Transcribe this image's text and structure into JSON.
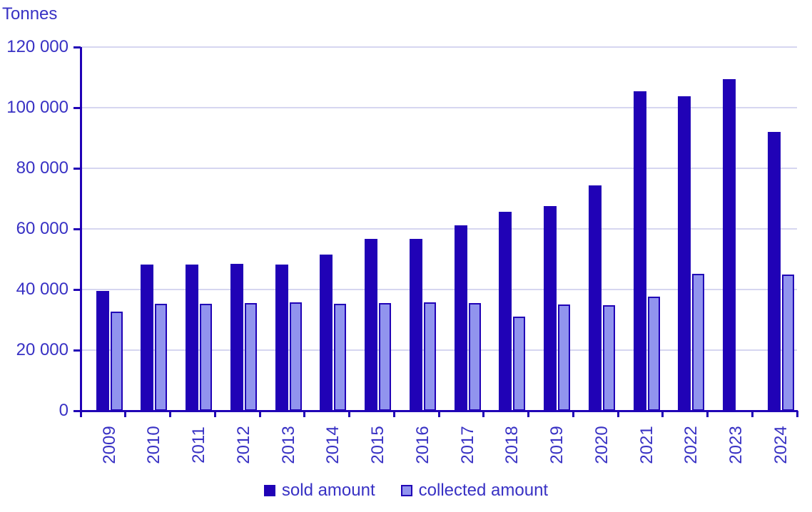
{
  "colors": {
    "sold": "#2002b6",
    "collected_fill": "#9194ee",
    "collected_border": "#2002b6",
    "gridline": "#d6d6f0",
    "axis": "#2002b6",
    "text": "#3831c4",
    "background": "#ffffff"
  },
  "chart_data": {
    "type": "bar",
    "title": "",
    "y_axis_title": "Tonnes",
    "categories": [
      "2009",
      "2010",
      "2011",
      "2012",
      "2013",
      "2014",
      "2015",
      "2016",
      "2017",
      "2018",
      "2019",
      "2020",
      "2021",
      "2022",
      "2023",
      "2024"
    ],
    "series": [
      {
        "name": "sold amount",
        "color": "#2002b6",
        "values": [
          39500,
          48300,
          48200,
          48400,
          48200,
          51500,
          56700,
          56700,
          61200,
          65600,
          67500,
          74400,
          105400,
          103800,
          109400,
          92000
        ]
      },
      {
        "name": "collected amount",
        "color": "#9194ee",
        "border_color": "#2002b6",
        "values": [
          32800,
          35400,
          35400,
          35600,
          35800,
          35300,
          35600,
          35700,
          35500,
          31100,
          35100,
          34900,
          37600,
          45100,
          null,
          45000
        ]
      }
    ],
    "ylim": [
      0,
      120000
    ],
    "ytick_step": 20000,
    "ytick_labels": [
      "0",
      "20 000",
      "40 000",
      "60 000",
      "80 000",
      "100 000",
      "120 000"
    ],
    "grid": "horizontal",
    "legend_position": "bottom",
    "x_label_rotation": -90
  }
}
